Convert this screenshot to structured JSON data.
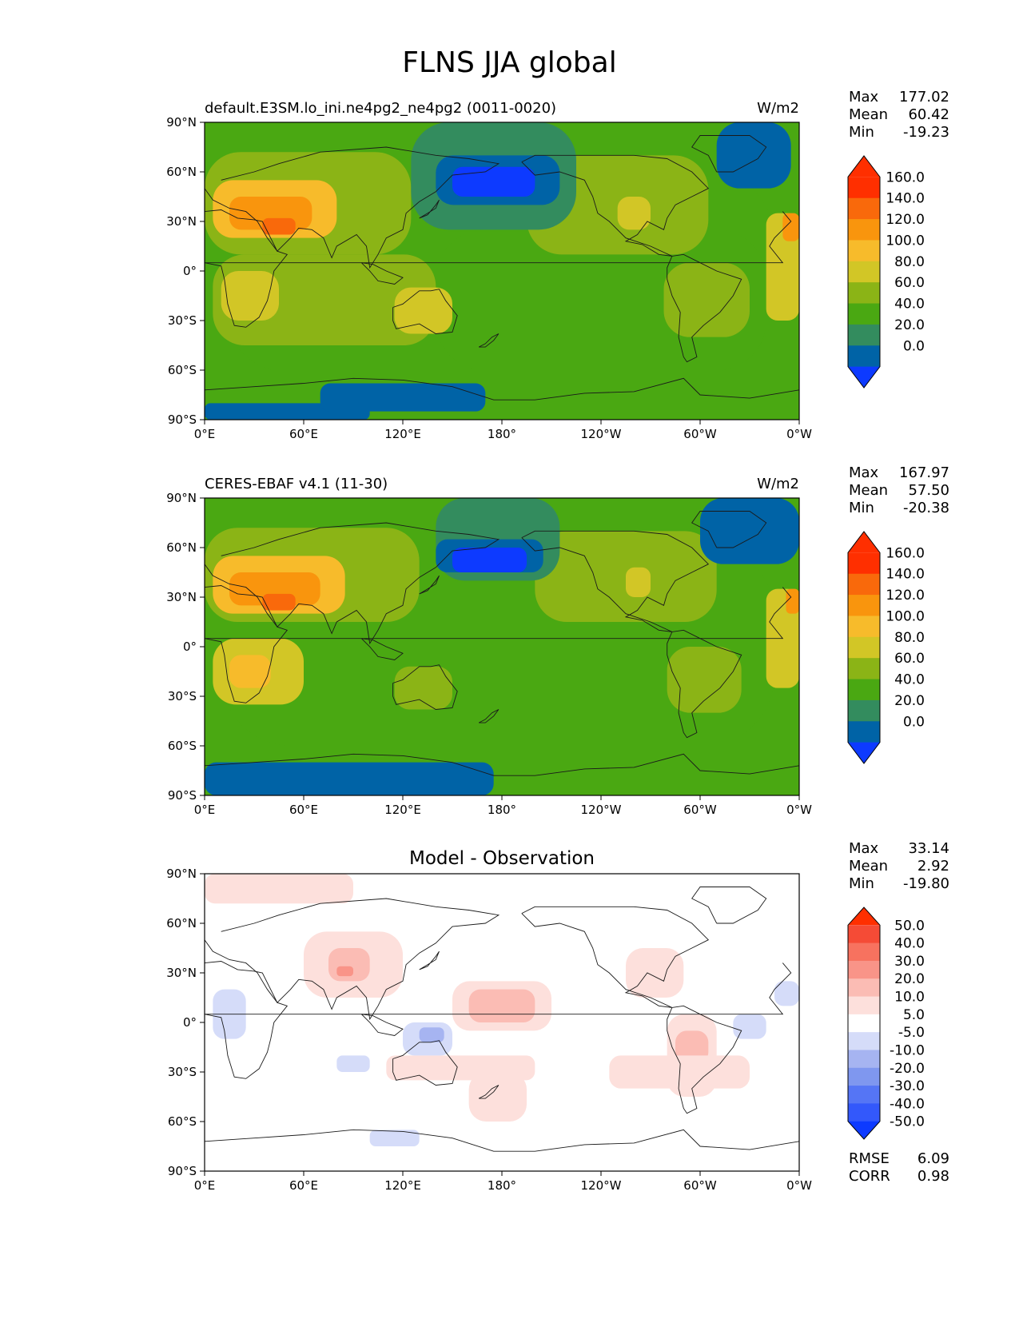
{
  "figure": {
    "title": "FLNS JJA global"
  },
  "palettes": {
    "main": [
      "#0d3aff",
      "#0063a6",
      "#338c5e",
      "#4aa812",
      "#8bb416",
      "#d2c626",
      "#f7bb2b",
      "#f9950d",
      "#f9690b",
      "#ff2f00",
      "#ff2f00"
    ],
    "diff": [
      "#0d3aff",
      "#3358fb",
      "#5575f5",
      "#7f97ef",
      "#a6b4f1",
      "#d5dcf9",
      "#ffffff",
      "#fde0dc",
      "#fbbcb4",
      "#f99488",
      "#f7725f",
      "#f54b36",
      "#ff2f00"
    ]
  },
  "colorbars": {
    "main_labels": [
      "160.0",
      "140.0",
      "120.0",
      "100.0",
      "80.0",
      "60.0",
      "40.0",
      "20.0",
      "0.0"
    ],
    "diff_labels": [
      "50.0",
      "40.0",
      "30.0",
      "20.0",
      "10.0",
      "5.0",
      "-5.0",
      "-10.0",
      "-20.0",
      "-30.0",
      "-40.0",
      "-50.0"
    ]
  },
  "axis_ticks": {
    "x": [
      "0°E",
      "60°E",
      "120°E",
      "180°",
      "120°W",
      "60°W",
      "0°W"
    ],
    "y": [
      "90°N",
      "60°N",
      "30°N",
      "0°",
      "30°S",
      "60°S",
      "90°S"
    ]
  },
  "chart_data": [
    {
      "type": "heatmap",
      "title": "default.E3SM.lo_ini.ne4pg2_ne4pg2 (0011-0020)",
      "units": "W/m2",
      "stats": {
        "Max": "177.02",
        "Mean": "60.42",
        "Min": "-19.23"
      },
      "projection": "cylindrical, central longitude 180",
      "lon_range": [
        0,
        360
      ],
      "lat_range": [
        -90,
        90
      ],
      "levels": [
        0,
        20,
        40,
        60,
        80,
        100,
        120,
        140,
        160
      ],
      "field": [
        {
          "lon": [
            0,
            360
          ],
          "lat": [
            -90,
            90
          ],
          "value": 45
        },
        {
          "lon": [
            10,
            345
          ],
          "lat": [
            -62,
            62
          ],
          "value": 55
        },
        {
          "lon": [
            140,
            340
          ],
          "lat": [
            -60,
            25
          ],
          "value": 50
        },
        {
          "lon": [
            5,
            140
          ],
          "lat": [
            -45,
            10
          ],
          "value": 70
        },
        {
          "lon": [
            10,
            45
          ],
          "lat": [
            -30,
            0
          ],
          "value": 85
        },
        {
          "lon": [
            115,
            150
          ],
          "lat": [
            -38,
            -10
          ],
          "value": 85
        },
        {
          "lon": [
            0,
            125
          ],
          "lat": [
            10,
            72
          ],
          "value": 75
        },
        {
          "lon": [
            5,
            80
          ],
          "lat": [
            20,
            55
          ],
          "value": 110
        },
        {
          "lon": [
            15,
            65
          ],
          "lat": [
            25,
            45
          ],
          "value": 130
        },
        {
          "lon": [
            35,
            55
          ],
          "lat": [
            22,
            32
          ],
          "value": 150
        },
        {
          "lon": [
            195,
            305
          ],
          "lat": [
            10,
            70
          ],
          "value": 70
        },
        {
          "lon": [
            250,
            270
          ],
          "lat": [
            25,
            45
          ],
          "value": 88
        },
        {
          "lon": [
            278,
            330
          ],
          "lat": [
            -40,
            5
          ],
          "value": 70
        },
        {
          "lon": [
            340,
            360
          ],
          "lat": [
            -30,
            35
          ],
          "value": 80
        },
        {
          "lon": [
            350,
            360
          ],
          "lat": [
            18,
            35
          ],
          "value": 125
        },
        {
          "lon": [
            125,
            225
          ],
          "lat": [
            25,
            90
          ],
          "value": 35
        },
        {
          "lon": [
            140,
            215
          ],
          "lat": [
            40,
            70
          ],
          "value": 15
        },
        {
          "lon": [
            150,
            200
          ],
          "lat": [
            45,
            63
          ],
          "value": -5
        },
        {
          "lon": [
            0,
            100
          ],
          "lat": [
            -90,
            -80
          ],
          "value": 15
        },
        {
          "lon": [
            70,
            170
          ],
          "lat": [
            -85,
            -68
          ],
          "value": 15
        },
        {
          "lon": [
            310,
            355
          ],
          "lat": [
            50,
            90
          ],
          "value": 15
        }
      ]
    },
    {
      "type": "heatmap",
      "title": "CERES-EBAF v4.1 (11-30)",
      "units": "W/m2",
      "stats": {
        "Max": "167.97",
        "Mean": "57.50",
        "Min": "-20.38"
      },
      "projection": "cylindrical, central longitude 180",
      "lon_range": [
        0,
        360
      ],
      "lat_range": [
        -90,
        90
      ],
      "levels": [
        0,
        20,
        40,
        60,
        80,
        100,
        120,
        140,
        160
      ],
      "field": [
        {
          "lon": [
            0,
            360
          ],
          "lat": [
            -90,
            90
          ],
          "value": 45
        },
        {
          "lon": [
            10,
            345
          ],
          "lat": [
            -60,
            62
          ],
          "value": 55
        },
        {
          "lon": [
            0,
            130
          ],
          "lat": [
            15,
            72
          ],
          "value": 75
        },
        {
          "lon": [
            5,
            85
          ],
          "lat": [
            20,
            55
          ],
          "value": 105
        },
        {
          "lon": [
            15,
            70
          ],
          "lat": [
            25,
            45
          ],
          "value": 125
        },
        {
          "lon": [
            35,
            55
          ],
          "lat": [
            22,
            32
          ],
          "value": 145
        },
        {
          "lon": [
            5,
            60
          ],
          "lat": [
            -35,
            5
          ],
          "value": 80
        },
        {
          "lon": [
            15,
            40
          ],
          "lat": [
            -25,
            -5
          ],
          "value": 105
        },
        {
          "lon": [
            115,
            150
          ],
          "lat": [
            -38,
            -12
          ],
          "value": 70
        },
        {
          "lon": [
            200,
            310
          ],
          "lat": [
            15,
            70
          ],
          "value": 70
        },
        {
          "lon": [
            255,
            270
          ],
          "lat": [
            30,
            48
          ],
          "value": 85
        },
        {
          "lon": [
            280,
            325
          ],
          "lat": [
            -40,
            0
          ],
          "value": 70
        },
        {
          "lon": [
            340,
            360
          ],
          "lat": [
            -25,
            35
          ],
          "value": 80
        },
        {
          "lon": [
            352,
            360
          ],
          "lat": [
            20,
            35
          ],
          "value": 125
        },
        {
          "lon": [
            140,
            215
          ],
          "lat": [
            40,
            90
          ],
          "value": 35
        },
        {
          "lon": [
            140,
            205
          ],
          "lat": [
            45,
            65
          ],
          "value": 15
        },
        {
          "lon": [
            150,
            195
          ],
          "lat": [
            45,
            60
          ],
          "value": -5
        },
        {
          "lon": [
            0,
            175
          ],
          "lat": [
            -90,
            -70
          ],
          "value": 15
        },
        {
          "lon": [
            300,
            360
          ],
          "lat": [
            50,
            90
          ],
          "value": 15
        }
      ]
    },
    {
      "type": "heatmap",
      "title": "Model - Observation",
      "stats": {
        "Max": "33.14",
        "Mean": "2.92",
        "Min": "-19.80"
      },
      "metrics": {
        "RMSE": "6.09",
        "CORR": "0.98"
      },
      "projection": "cylindrical, central longitude 180",
      "lon_range": [
        0,
        360
      ],
      "lat_range": [
        -90,
        90
      ],
      "levels": [
        -50,
        -40,
        -30,
        -20,
        -10,
        -5,
        5,
        10,
        20,
        30,
        40,
        50
      ],
      "field": [
        {
          "lon": [
            0,
            360
          ],
          "lat": [
            -90,
            90
          ],
          "value": 0
        },
        {
          "lon": [
            0,
            90
          ],
          "lat": [
            72,
            90
          ],
          "value": 7
        },
        {
          "lon": [
            60,
            120
          ],
          "lat": [
            15,
            55
          ],
          "value": 7
        },
        {
          "lon": [
            75,
            100
          ],
          "lat": [
            25,
            45
          ],
          "value": 15
        },
        {
          "lon": [
            80,
            90
          ],
          "lat": [
            28,
            34
          ],
          "value": 25
        },
        {
          "lon": [
            150,
            210
          ],
          "lat": [
            -5,
            25
          ],
          "value": 7
        },
        {
          "lon": [
            160,
            200
          ],
          "lat": [
            0,
            20
          ],
          "value": 15
        },
        {
          "lon": [
            110,
            200
          ],
          "lat": [
            -35,
            -20
          ],
          "value": 7
        },
        {
          "lon": [
            160,
            195
          ],
          "lat": [
            -60,
            -30
          ],
          "value": 7
        },
        {
          "lon": [
            255,
            290
          ],
          "lat": [
            15,
            45
          ],
          "value": 7
        },
        {
          "lon": [
            280,
            310
          ],
          "lat": [
            -45,
            5
          ],
          "value": 7
        },
        {
          "lon": [
            285,
            305
          ],
          "lat": [
            -25,
            -5
          ],
          "value": 15
        },
        {
          "lon": [
            245,
            330
          ],
          "lat": [
            -40,
            -20
          ],
          "value": 7
        },
        {
          "lon": [
            5,
            25
          ],
          "lat": [
            -10,
            20
          ],
          "value": -7
        },
        {
          "lon": [
            120,
            150
          ],
          "lat": [
            -20,
            0
          ],
          "value": -7
        },
        {
          "lon": [
            130,
            145
          ],
          "lat": [
            -12,
            -3
          ],
          "value": -15
        },
        {
          "lon": [
            80,
            100
          ],
          "lat": [
            -30,
            -20
          ],
          "value": -7
        },
        {
          "lon": [
            100,
            130
          ],
          "lat": [
            -75,
            -65
          ],
          "value": -7
        },
        {
          "lon": [
            320,
            340
          ],
          "lat": [
            -10,
            5
          ],
          "value": -7
        },
        {
          "lon": [
            345,
            360
          ],
          "lat": [
            10,
            25
          ],
          "value": -7
        }
      ]
    }
  ]
}
